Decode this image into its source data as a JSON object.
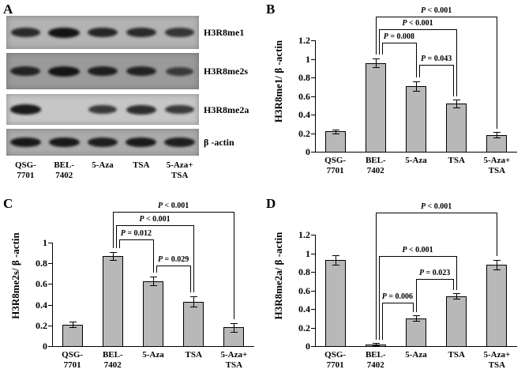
{
  "figure": {
    "panels": {
      "A": {
        "letter": "A",
        "blots": [
          {
            "label": "H3R8me1",
            "bg": "#b3b3b3",
            "bands": [
              0.8,
              1.0,
              0.85,
              0.8,
              0.7
            ]
          },
          {
            "label": "H3R8me2s",
            "bg": "#9a9a9a",
            "bands": [
              0.85,
              1.0,
              0.9,
              0.85,
              0.6
            ]
          },
          {
            "label": "H3R8me2a",
            "bg": "#c6c6c6",
            "bands": [
              0.95,
              0.0,
              0.7,
              0.8,
              0.7
            ]
          },
          {
            "label": "β -actin",
            "bg": "#ababab",
            "bands": [
              0.95,
              0.95,
              0.9,
              0.95,
              0.9
            ]
          }
        ],
        "lanes": [
          [
            "QSG-",
            "7701"
          ],
          [
            "BEL-",
            "7402"
          ],
          [
            "5-Aza"
          ],
          [
            "TSA"
          ],
          [
            "5-Aza+",
            "TSA"
          ]
        ]
      },
      "B": {
        "letter": "B"
      },
      "C": {
        "letter": "C"
      },
      "D": {
        "letter": "D"
      }
    },
    "colors": {
      "bar_fill": "#b8b8b8",
      "bar_border": "#000000",
      "band": "#141414",
      "axis": "#000000"
    }
  },
  "chart_data": [
    {
      "panel": "B",
      "type": "bar",
      "title": "",
      "xlabel": "",
      "ylabel": "H3R8me1/ β -actin",
      "categories": [
        [
          "QSG-",
          "7701"
        ],
        [
          "BEL-",
          "7402"
        ],
        [
          "5-Aza"
        ],
        [
          "TSA"
        ],
        [
          "5-Aza+",
          "TSA"
        ]
      ],
      "values": [
        0.22,
        0.96,
        0.71,
        0.52,
        0.18
      ],
      "errors": [
        0.02,
        0.05,
        0.05,
        0.04,
        0.03
      ],
      "ylim": [
        0,
        1.2
      ],
      "yticks": [
        "0",
        "0.2",
        "0.4",
        "0.6",
        "0.8",
        "1",
        "1.2"
      ],
      "grid": false,
      "headroom_max": 1.52,
      "brackets": [
        {
          "from": 1,
          "to": 4,
          "label": "P < 0.001",
          "y": 1.46
        },
        {
          "from": 1,
          "to": 3,
          "label": "P < 0.001",
          "y": 1.32
        },
        {
          "from": 1,
          "to": 2,
          "label": "P = 0.008",
          "y": 1.18
        },
        {
          "from": 2,
          "to": 3,
          "label": "P = 0.043",
          "y": 0.94
        }
      ]
    },
    {
      "panel": "C",
      "type": "bar",
      "title": "",
      "xlabel": "",
      "ylabel": "H3R8me2s/ β -actin",
      "categories": [
        [
          "QSG-",
          "7701"
        ],
        [
          "BEL-",
          "7402"
        ],
        [
          "5-Aza"
        ],
        [
          "TSA"
        ],
        [
          "5-Aza+",
          "TSA"
        ]
      ],
      "values": [
        0.21,
        0.87,
        0.63,
        0.43,
        0.18
      ],
      "errors": [
        0.03,
        0.04,
        0.04,
        0.05,
        0.04
      ],
      "ylim": [
        0,
        1
      ],
      "yticks": [
        "0",
        "0.2",
        "0.4",
        "0.6",
        "0.8",
        "1"
      ],
      "grid": false,
      "headroom_max": 1.36,
      "brackets": [
        {
          "from": 1,
          "to": 4,
          "label": "P < 0.001",
          "y": 1.3
        },
        {
          "from": 1,
          "to": 3,
          "label": "P < 0.001",
          "y": 1.17
        },
        {
          "from": 1,
          "to": 2,
          "label": "P = 0.012",
          "y": 1.03
        },
        {
          "from": 2,
          "to": 3,
          "label": "P = 0.029",
          "y": 0.78
        }
      ]
    },
    {
      "panel": "D",
      "type": "bar",
      "title": "",
      "xlabel": "",
      "ylabel": "H3R8me2a/ β -actin",
      "categories": [
        [
          "QSG-",
          "7701"
        ],
        [
          "BEL-",
          "7402"
        ],
        [
          "5-Aza"
        ],
        [
          "TSA"
        ],
        [
          "5-Aza+",
          "TSA"
        ]
      ],
      "values": [
        0.93,
        0.02,
        0.3,
        0.54,
        0.88
      ],
      "errors": [
        0.05,
        0.01,
        0.03,
        0.03,
        0.05
      ],
      "ylim": [
        0,
        1.2
      ],
      "yticks": [
        "0",
        "0.2",
        "0.4",
        "0.6",
        "0.8",
        "1",
        "1.2"
      ],
      "grid": false,
      "headroom_max": 1.52,
      "brackets": [
        {
          "from": 1,
          "to": 4,
          "label": "P < 0.001",
          "y": 1.44
        },
        {
          "from": 1,
          "to": 3,
          "label": "P < 0.001",
          "y": 0.97
        },
        {
          "from": 2,
          "to": 3,
          "label": "P = 0.023",
          "y": 0.73
        },
        {
          "from": 1,
          "to": 2,
          "label": "P = 0.006",
          "y": 0.47
        }
      ]
    }
  ]
}
